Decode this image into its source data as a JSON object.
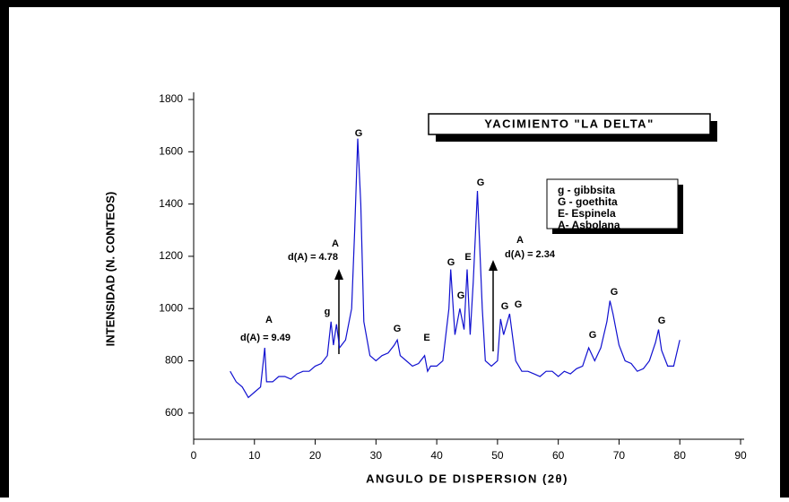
{
  "chart_data": {
    "type": "line",
    "box_title": "YACIMIENTO \"LA DELTA\"",
    "xlabel": "ANGULO DE DISPERSION (2θ)",
    "ylabel": "INTENSIDAD (N. CONTEOS)",
    "xlim": [
      0,
      90
    ],
    "ylim": [
      500,
      1800
    ],
    "xticks": [
      0,
      10,
      20,
      30,
      40,
      50,
      60,
      70,
      80,
      90
    ],
    "yticks": [
      600,
      800,
      1000,
      1200,
      1400,
      1600,
      1800
    ],
    "legend_items": [
      "g - gibbsita",
      "G - goethita",
      "E- Espinela",
      "A- Asbolana"
    ],
    "annotations": [
      "A",
      "d(A) = 9.49",
      "g",
      "A",
      "d(A) = 4.78",
      "G",
      "G",
      "E",
      "G",
      "G",
      "E",
      "G",
      "A",
      "d(A) = 2.34",
      "G",
      "G",
      "G",
      "G",
      "G"
    ],
    "series": [
      {
        "color": "#1010d0",
        "x": [
          6,
          7,
          8,
          9,
          10,
          11,
          11.7,
          12,
          13,
          14,
          15,
          16,
          17,
          18,
          19,
          20,
          21,
          22,
          22.6,
          23,
          23.5,
          24,
          25,
          26,
          26.5,
          27,
          27.5,
          28,
          29,
          30,
          31,
          32,
          33,
          33.5,
          34,
          35,
          36,
          37,
          38,
          38.5,
          39,
          40,
          41,
          42,
          42.3,
          43,
          43.8,
          44.5,
          45,
          45.5,
          46,
          46.7,
          47.5,
          48,
          49,
          50,
          50.5,
          51,
          52,
          53,
          54,
          55,
          56,
          57,
          58,
          59,
          60,
          61,
          62,
          63,
          64,
          65,
          66,
          67,
          68,
          68.5,
          69,
          70,
          71,
          72,
          73,
          74,
          75,
          76,
          76.5,
          77,
          78,
          79,
          80
        ],
        "values": [
          760,
          720,
          700,
          660,
          680,
          700,
          850,
          720,
          720,
          740,
          740,
          730,
          750,
          760,
          760,
          780,
          790,
          820,
          950,
          860,
          940,
          850,
          880,
          1000,
          1300,
          1650,
          1400,
          950,
          820,
          800,
          820,
          830,
          860,
          880,
          820,
          800,
          780,
          790,
          820,
          760,
          780,
          780,
          800,
          1000,
          1150,
          900,
          1000,
          920,
          1150,
          900,
          1100,
          1450,
          1000,
          800,
          780,
          800,
          960,
          900,
          980,
          800,
          760,
          760,
          750,
          740,
          760,
          760,
          740,
          760,
          750,
          770,
          780,
          850,
          800,
          850,
          950,
          1030,
          980,
          860,
          800,
          790,
          760,
          770,
          800,
          870,
          920,
          840,
          780,
          780,
          880
        ]
      }
    ]
  }
}
